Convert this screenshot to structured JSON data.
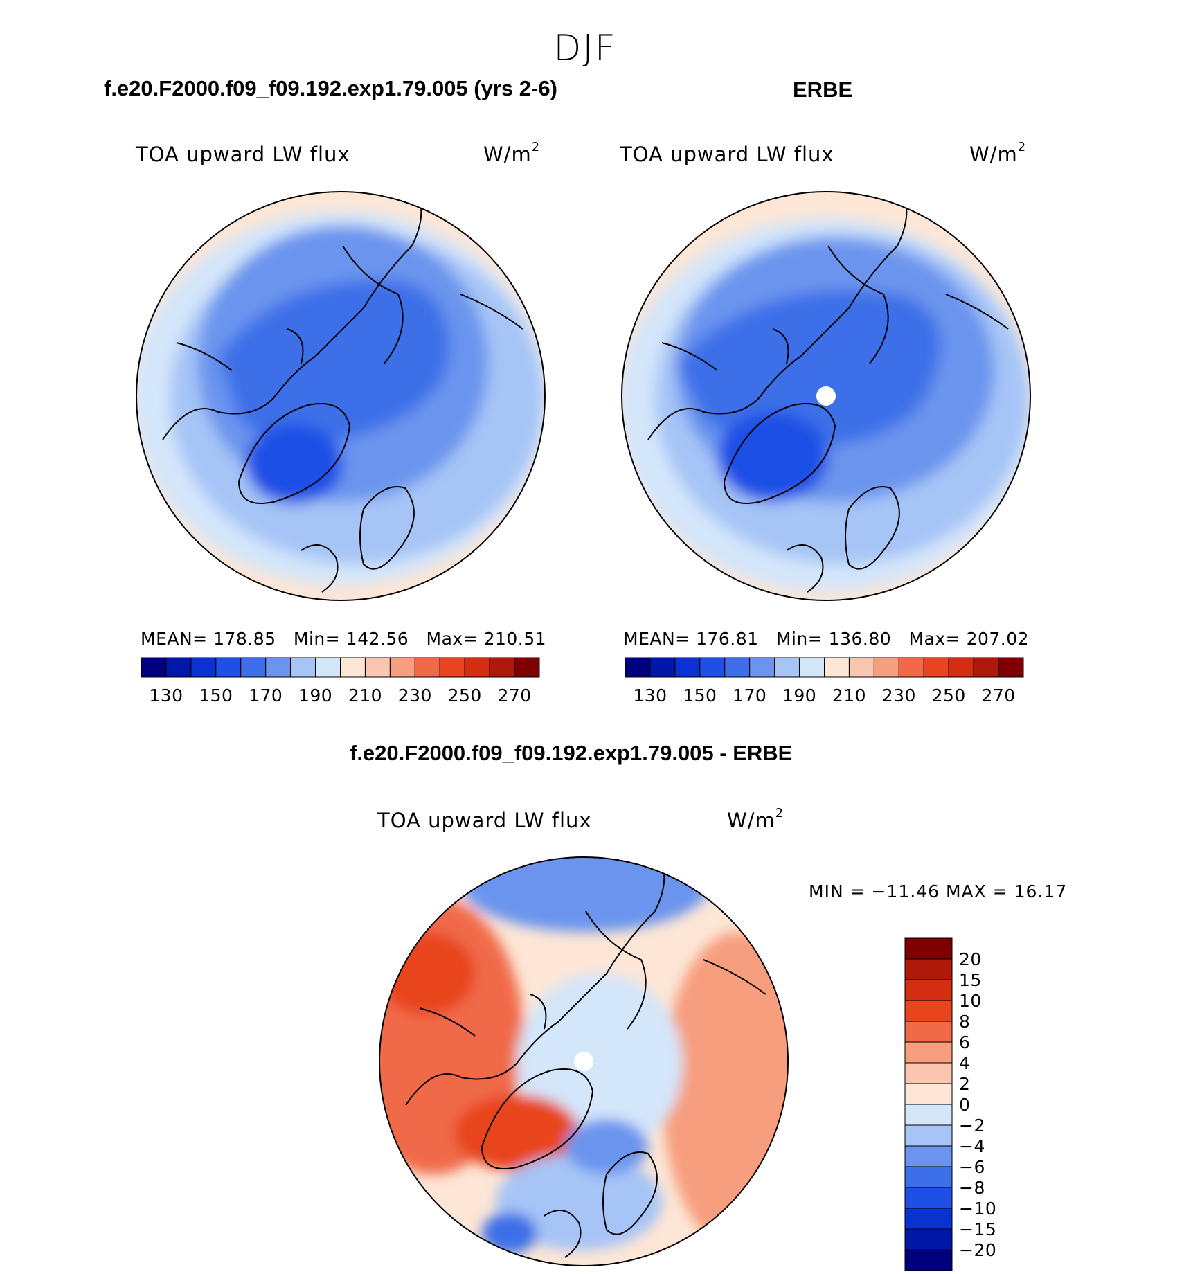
{
  "figure": {
    "season": "DJF"
  },
  "panels": [
    {
      "title": "f.e20.F2000.f09_f09.192.exp1.79.005 (yrs 2-6)",
      "field_label": "TOA upward LW flux",
      "units_base": "W/m",
      "units_exp": "2",
      "stats": {
        "mean_label": "MEAN=",
        "mean": "178.85",
        "min_label": "Min=",
        "min": "142.56",
        "max_label": "Max=",
        "max": "210.51"
      }
    },
    {
      "title": "ERBE",
      "field_label": "TOA upward LW flux",
      "units_base": "W/m",
      "units_exp": "2",
      "stats": {
        "mean_label": "MEAN=",
        "mean": "176.81",
        "min_label": "Min=",
        "min": "136.80",
        "max_label": "Max=",
        "max": "207.02"
      }
    },
    {
      "title": "f.e20.F2000.f09_f09.192.exp1.79.005 - ERBE",
      "field_label": "TOA upward LW flux",
      "units_base": "W/m",
      "units_exp": "2",
      "stats_text": "MIN = −11.46 MAX =   16.17"
    }
  ],
  "colorbars": {
    "field": {
      "colors": [
        "#00007f",
        "#0018a8",
        "#0a32d2",
        "#1e50e6",
        "#3c6fe8",
        "#6a94ee",
        "#a6c4f6",
        "#d4e6fa",
        "#fde6d6",
        "#fbc6b0",
        "#f79e7e",
        "#f06a48",
        "#e8441e",
        "#d42e10",
        "#ae1a0a",
        "#7f0000"
      ],
      "tick_labels": [
        "130",
        "150",
        "170",
        "190",
        "210",
        "230",
        "250",
        "270"
      ]
    },
    "diff": {
      "colors": [
        "#00007f",
        "#0018a8",
        "#0a32d2",
        "#1e50e6",
        "#3c6fe8",
        "#6a94ee",
        "#a6c4f6",
        "#d4e6fa",
        "#fde6d6",
        "#fbc6b0",
        "#f79e7e",
        "#f06a48",
        "#e8441e",
        "#d42e10",
        "#ae1a0a",
        "#7f0000"
      ],
      "tick_labels": [
        "−20",
        "−15",
        "−10",
        "−8",
        "−6",
        "−4",
        "−2",
        "0",
        "2",
        "4",
        "6",
        "8",
        "10",
        "15",
        "20"
      ]
    }
  },
  "chart_data": [
    {
      "type": "heatmap",
      "title": "f.e20.F2000.f09_f09.192.exp1.79.005 (yrs 2-6)",
      "subtitle": "TOA upward LW flux",
      "units": "W/m2",
      "projection": "north polar stereographic",
      "season": "DJF",
      "mean": 178.85,
      "min": 142.56,
      "max": 210.51,
      "contour_levels": [
        130,
        140,
        150,
        160,
        170,
        180,
        190,
        200,
        210,
        220,
        230,
        240,
        250,
        260,
        270
      ]
    },
    {
      "type": "heatmap",
      "title": "ERBE",
      "subtitle": "TOA upward LW flux",
      "units": "W/m2",
      "projection": "north polar stereographic",
      "season": "DJF",
      "mean": 176.81,
      "min": 136.8,
      "max": 207.02,
      "contour_levels": [
        130,
        140,
        150,
        160,
        170,
        180,
        190,
        200,
        210,
        220,
        230,
        240,
        250,
        260,
        270
      ]
    },
    {
      "type": "heatmap",
      "title": "f.e20.F2000.f09_f09.192.exp1.79.005 - ERBE",
      "subtitle": "TOA upward LW flux",
      "units": "W/m2",
      "projection": "north polar stereographic",
      "season": "DJF",
      "min": -11.46,
      "max": 16.17,
      "contour_levels": [
        -20,
        -15,
        -10,
        -8,
        -6,
        -4,
        -2,
        0,
        2,
        4,
        6,
        8,
        10,
        15,
        20
      ]
    }
  ]
}
